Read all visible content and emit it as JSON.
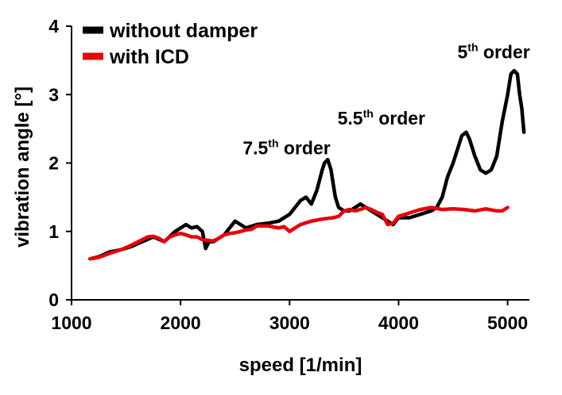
{
  "chart_data": {
    "type": "line",
    "title": "",
    "xlabel": "speed [1/min]",
    "ylabel": "vibration angle [°]",
    "xlim": [
      1000,
      5200
    ],
    "ylim": [
      0,
      4
    ],
    "x_ticks": [
      1000,
      2000,
      3000,
      4000,
      5000
    ],
    "y_ticks": [
      0,
      1,
      2,
      3,
      4
    ],
    "x_tick_labels": [
      "1000",
      "2000",
      "3000",
      "4000",
      "5000"
    ],
    "y_tick_labels": [
      "0",
      "1",
      "2",
      "3",
      "4"
    ],
    "grid": false,
    "legend_position": "top-left",
    "series": [
      {
        "name": "without damper",
        "color": "#000000",
        "x": [
          1170,
          1250,
          1350,
          1450,
          1550,
          1650,
          1750,
          1850,
          1950,
          2050,
          2100,
          2150,
          2200,
          2230,
          2260,
          2300,
          2400,
          2450,
          2500,
          2550,
          2600,
          2700,
          2800,
          2900,
          3000,
          3050,
          3100,
          3150,
          3200,
          3250,
          3300,
          3320,
          3350,
          3380,
          3400,
          3420,
          3450,
          3500,
          3550,
          3600,
          3650,
          3700,
          3750,
          3800,
          3850,
          3900,
          3950,
          4000,
          4100,
          4200,
          4300,
          4350,
          4400,
          4450,
          4500,
          4550,
          4580,
          4620,
          4650,
          4700,
          4750,
          4800,
          4850,
          4900,
          4950,
          5000,
          5030,
          5060,
          5090,
          5110,
          5130,
          5150
        ],
        "y": [
          0.6,
          0.63,
          0.7,
          0.73,
          0.78,
          0.85,
          0.92,
          0.85,
          1.0,
          1.1,
          1.05,
          1.07,
          1.0,
          0.75,
          0.85,
          0.85,
          0.95,
          1.05,
          1.15,
          1.1,
          1.05,
          1.1,
          1.12,
          1.15,
          1.25,
          1.35,
          1.45,
          1.5,
          1.4,
          1.6,
          1.9,
          2.0,
          2.05,
          1.9,
          1.7,
          1.5,
          1.35,
          1.3,
          1.3,
          1.35,
          1.4,
          1.35,
          1.3,
          1.25,
          1.2,
          1.15,
          1.1,
          1.2,
          1.2,
          1.25,
          1.3,
          1.35,
          1.5,
          1.8,
          2.0,
          2.25,
          2.4,
          2.45,
          2.35,
          2.1,
          1.9,
          1.85,
          1.9,
          2.1,
          2.6,
          3.0,
          3.3,
          3.35,
          3.3,
          3.0,
          2.8,
          2.45
        ]
      },
      {
        "name": "with ICD",
        "color": "#e8000b",
        "x": [
          1170,
          1250,
          1350,
          1450,
          1550,
          1650,
          1700,
          1750,
          1800,
          1850,
          1900,
          1950,
          2000,
          2050,
          2100,
          2150,
          2200,
          2250,
          2300,
          2350,
          2400,
          2450,
          2500,
          2550,
          2600,
          2650,
          2700,
          2800,
          2900,
          2950,
          3000,
          3050,
          3100,
          3200,
          3300,
          3400,
          3450,
          3500,
          3550,
          3600,
          3650,
          3700,
          3750,
          3800,
          3850,
          3900,
          3950,
          4000,
          4100,
          4200,
          4300,
          4400,
          4500,
          4600,
          4700,
          4800,
          4900,
          4950,
          5000
        ],
        "y": [
          0.6,
          0.62,
          0.68,
          0.73,
          0.8,
          0.88,
          0.92,
          0.93,
          0.9,
          0.85,
          0.92,
          0.95,
          0.97,
          0.95,
          0.92,
          0.92,
          0.88,
          0.87,
          0.86,
          0.9,
          0.95,
          0.97,
          0.98,
          1.0,
          1.02,
          1.03,
          1.08,
          1.08,
          1.05,
          1.07,
          1.0,
          1.05,
          1.1,
          1.15,
          1.18,
          1.2,
          1.22,
          1.3,
          1.32,
          1.3,
          1.32,
          1.35,
          1.32,
          1.28,
          1.25,
          1.1,
          1.12,
          1.22,
          1.27,
          1.32,
          1.35,
          1.32,
          1.33,
          1.32,
          1.3,
          1.33,
          1.3,
          1.3,
          1.35
        ]
      }
    ],
    "annotations": [
      {
        "base": "7.5",
        "sup": "th",
        "rest": " order",
        "x": 2570,
        "y": 2.13
      },
      {
        "base": "5.5",
        "sup": "th",
        "rest": " order",
        "x": 3440,
        "y": 2.56
      },
      {
        "base": "5",
        "sup": "th",
        "rest": " order",
        "x": 4540,
        "y": 3.53
      }
    ]
  }
}
